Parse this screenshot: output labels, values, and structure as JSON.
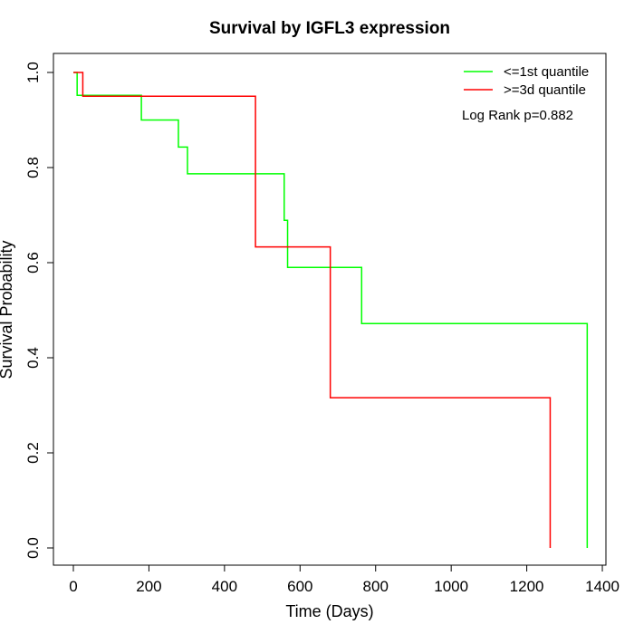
{
  "chart_data": {
    "type": "line",
    "title": "Survival by IGFL3 expression",
    "xlabel": "Time (Days)",
    "ylabel": "Survival Probability",
    "xlim": [
      0,
      1400
    ],
    "ylim": [
      0,
      1.0
    ],
    "x_ticks": [
      "0",
      "200",
      "400",
      "600",
      "800",
      "1000",
      "1200",
      "1400"
    ],
    "y_ticks": [
      "0.0",
      "0.2",
      "0.4",
      "0.6",
      "0.8",
      "1.0"
    ],
    "annotation": "Log Rank p=0.882",
    "legend_position": "top-right",
    "series": [
      {
        "name": "<=1st quantile",
        "color": "#00ff00",
        "step_x": [
          0,
          10,
          180,
          278,
          302,
          558,
          567,
          763,
          1360,
          1360
        ],
        "step_y": [
          1.0,
          0.952,
          0.9,
          0.843,
          0.787,
          0.689,
          0.59,
          0.472,
          0.472,
          0.0
        ]
      },
      {
        "name": ">=3d quantile",
        "color": "#ff0000",
        "step_x": [
          0,
          25,
          482,
          680,
          1262,
          1262
        ],
        "step_y": [
          1.0,
          0.95,
          0.633,
          0.316,
          0.316,
          0.0
        ]
      }
    ]
  }
}
